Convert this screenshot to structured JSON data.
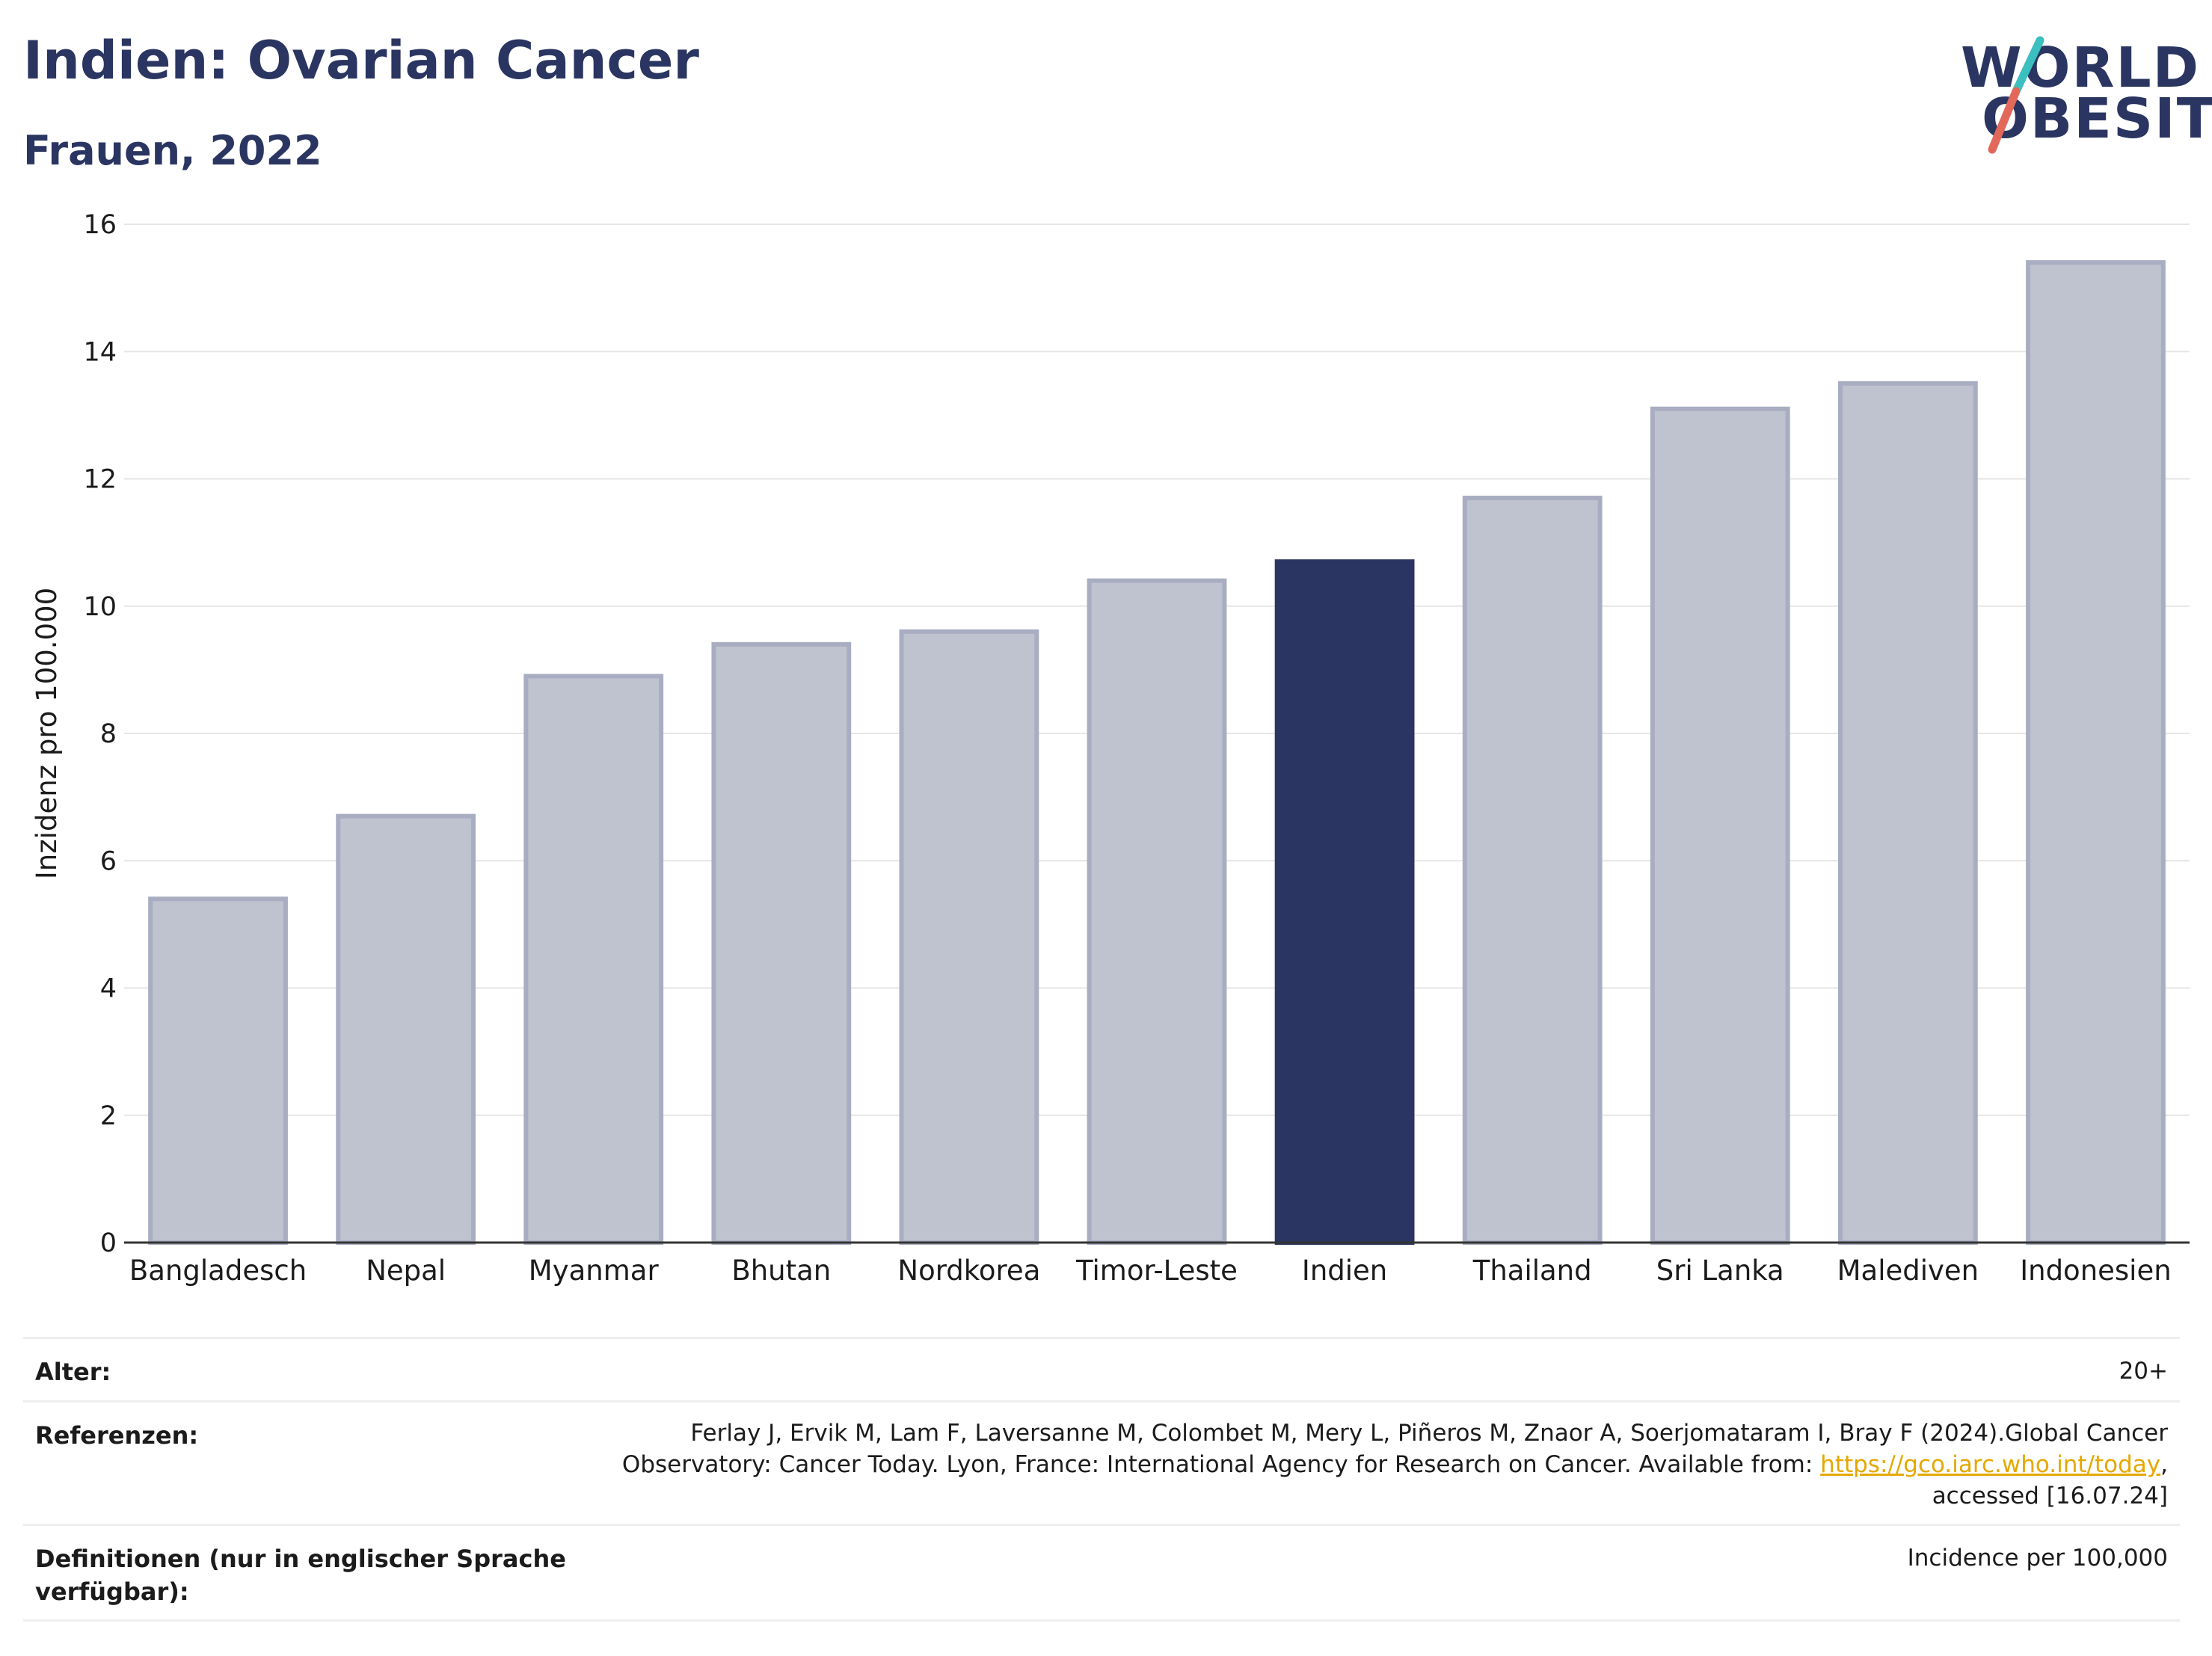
{
  "header": {
    "title": "Indien: Ovarian Cancer",
    "subtitle": "Frauen, 2022"
  },
  "logo": {
    "line1": "WORLD",
    "line2": "OBESITY",
    "slash_colors": [
      "#3cbfbf",
      "#e2685a"
    ]
  },
  "chart_data": {
    "type": "bar",
    "categories": [
      "Bangladesch",
      "Nepal",
      "Myanmar",
      "Bhutan",
      "Nordkorea",
      "Timor-Leste",
      "Indien",
      "Thailand",
      "Sri Lanka",
      "Malediven",
      "Indonesien"
    ],
    "values": [
      5.4,
      6.7,
      8.9,
      9.4,
      9.6,
      10.4,
      10.7,
      11.7,
      13.1,
      13.5,
      15.4
    ],
    "highlight": "Indien",
    "ylabel": "Inzidenz pro 100.000",
    "xlabel": "",
    "ylim": [
      0,
      16
    ],
    "yticks": [
      0,
      2,
      4,
      6,
      8,
      10,
      12,
      14,
      16
    ],
    "grid": true,
    "colors": {
      "bar": "#bfc2cf",
      "bar_border": "#a9adc1",
      "highlight": "#2a3561",
      "grid": "#e6e6e6",
      "axis": "#333333"
    }
  },
  "meta": {
    "age_label": "Alter:",
    "age_value": "20+",
    "refs_label": "Referenzen:",
    "refs_line1": "Ferlay J, Ervik M, Lam F, Laversanne M, Colombet M, Mery L, Piñeros M, Znaor A, Soerjomataram I, Bray F (2024).Global Cancer",
    "refs_line2_pre": "Observatory: Cancer Today. Lyon, France: International Agency for Research on Cancer. Available from: ",
    "refs_link": "https://gco.iarc.who.int/today",
    "refs_line2_post": ",",
    "refs_line3": "accessed [16.07.24]",
    "defs_label_line1": "Definitionen (nur in englischer Sprache",
    "defs_label_line2": "verfügbar):",
    "defs_value": "Incidence per 100,000"
  }
}
